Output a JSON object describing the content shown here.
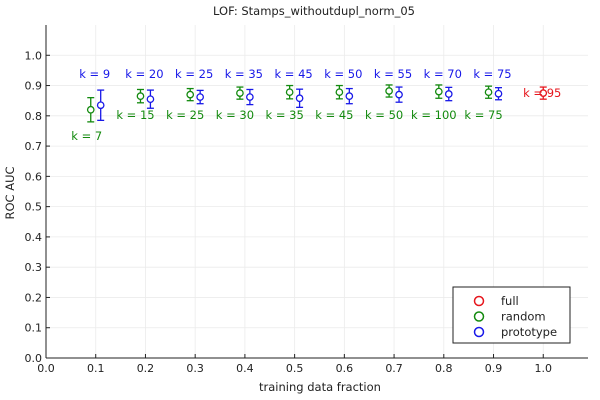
{
  "chart_data": {
    "type": "scatter",
    "title": "LOF: Stamps_withoutdupl_norm_05",
    "xlabel": "training data fraction",
    "ylabel": "ROC AUC",
    "xlim": [
      0.0,
      1.09
    ],
    "ylim": [
      0.0,
      1.1
    ],
    "xticks": [
      0.0,
      0.1,
      0.2,
      0.3,
      0.4,
      0.5,
      0.6,
      0.7,
      0.8,
      0.9,
      1.0
    ],
    "xtick_labels": [
      "0.0",
      "0.1",
      "0.2",
      "0.3",
      "0.4",
      "0.5",
      "0.6",
      "0.7",
      "0.8",
      "0.9",
      "1.0"
    ],
    "yticks": [
      0.0,
      0.1,
      0.2,
      0.3,
      0.4,
      0.5,
      0.6,
      0.7,
      0.8,
      0.9,
      1.0
    ],
    "ytick_labels": [
      "0.0",
      "0.1",
      "0.2",
      "0.3",
      "0.4",
      "0.5",
      "0.6",
      "0.7",
      "0.8",
      "0.9",
      "1.0"
    ],
    "grid": true,
    "legend_position": "bottom-right",
    "series": [
      {
        "name": "full",
        "color": "#e6161d",
        "points": [
          {
            "x": 1.0,
            "y": 0.875,
            "err": 0.02,
            "label": "k = 95"
          }
        ]
      },
      {
        "name": "random",
        "color": "#138a0e",
        "points": [
          {
            "x": 0.09,
            "y": 0.82,
            "err": 0.04,
            "label": "k = 7"
          },
          {
            "x": 0.19,
            "y": 0.865,
            "err": 0.022,
            "label": "k = 15"
          },
          {
            "x": 0.29,
            "y": 0.87,
            "err": 0.02,
            "label": "k = 25"
          },
          {
            "x": 0.39,
            "y": 0.875,
            "err": 0.02,
            "label": "k = 30"
          },
          {
            "x": 0.49,
            "y": 0.878,
            "err": 0.022,
            "label": "k = 35"
          },
          {
            "x": 0.59,
            "y": 0.878,
            "err": 0.022,
            "label": "k = 45"
          },
          {
            "x": 0.69,
            "y": 0.882,
            "err": 0.02,
            "label": "k = 50"
          },
          {
            "x": 0.79,
            "y": 0.88,
            "err": 0.022,
            "label": "k = 100"
          },
          {
            "x": 0.89,
            "y": 0.878,
            "err": 0.02,
            "label": "k = 75"
          }
        ]
      },
      {
        "name": "prototype",
        "color": "#1818e8",
        "points": [
          {
            "x": 0.11,
            "y": 0.835,
            "err": 0.05,
            "label": "k = 9"
          },
          {
            "x": 0.21,
            "y": 0.855,
            "err": 0.03,
            "label": "k = 20"
          },
          {
            "x": 0.31,
            "y": 0.862,
            "err": 0.022,
            "label": "k = 25"
          },
          {
            "x": 0.41,
            "y": 0.862,
            "err": 0.025,
            "label": "k = 35"
          },
          {
            "x": 0.51,
            "y": 0.858,
            "err": 0.03,
            "label": "k = 45"
          },
          {
            "x": 0.61,
            "y": 0.865,
            "err": 0.025,
            "label": "k = 50"
          },
          {
            "x": 0.71,
            "y": 0.87,
            "err": 0.025,
            "label": "k = 55"
          },
          {
            "x": 0.81,
            "y": 0.872,
            "err": 0.022,
            "label": "k = 70"
          },
          {
            "x": 0.91,
            "y": 0.873,
            "err": 0.02,
            "label": "k = 75"
          }
        ]
      }
    ]
  }
}
